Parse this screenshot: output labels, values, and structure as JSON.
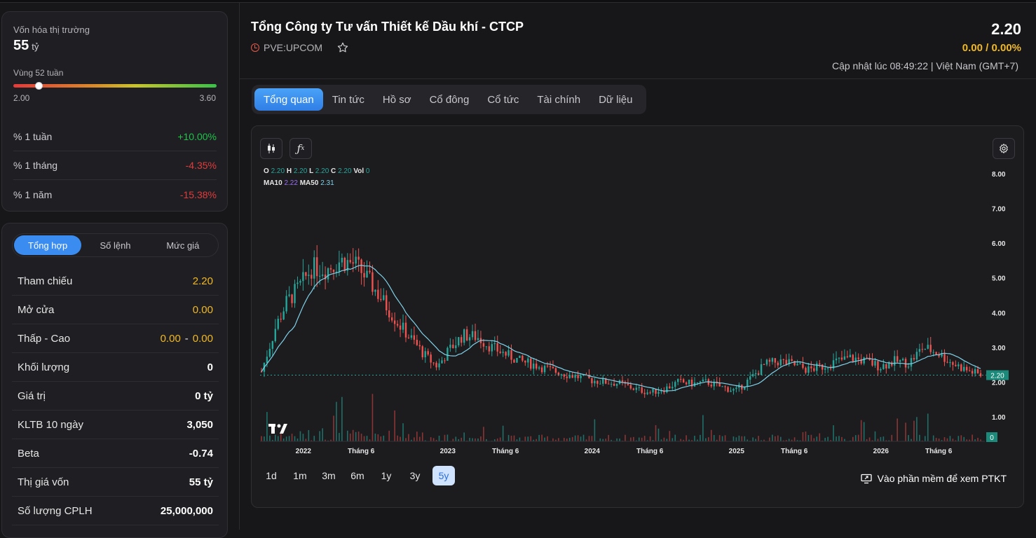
{
  "market_cap": {
    "label": "Vốn hóa thị trường",
    "value": "55",
    "unit": "tỷ"
  },
  "week52": {
    "label": "Vùng 52 tuần",
    "min": "2.00",
    "max": "3.60",
    "position": 0.125
  },
  "performance": [
    {
      "label": "% 1 tuần",
      "value": "+10.00%",
      "dir": "pos"
    },
    {
      "label": "% 1 tháng",
      "value": "-4.35%",
      "dir": "neg"
    },
    {
      "label": "% 1 năm",
      "value": "-15.38%",
      "dir": "neg"
    }
  ],
  "summary_tabs": [
    "Tổng hợp",
    "Số lệnh",
    "Mức giá"
  ],
  "stats": {
    "ref_label": "Tham chiếu",
    "ref_value": "2.20",
    "open_label": "Mở cửa",
    "open_value": "0.00",
    "lh_label": "Thấp - Cao",
    "low_value": "0.00",
    "lh_sep": "-",
    "high_value": "0.00",
    "vol_label": "Khối lượng",
    "vol_value": "0",
    "val_label": "Giá trị",
    "val_value": "0 tỷ",
    "kltb_label": "KLTB 10 ngày",
    "kltb_value": "3,050",
    "beta_label": "Beta",
    "beta_value": "-0.74",
    "cap_label": "Thị giá vốn",
    "cap_value": "55 tỷ",
    "cplh_label": "Số lượng CPLH",
    "cplh_value": "25,000,000"
  },
  "header": {
    "company": "Tổng Công ty Tư vấn Thiết kế Dầu khí - CTCP",
    "ticker": "PVE:UPCOM",
    "price": "2.20",
    "change": "0.00 / 0.00%",
    "updated": "Cập nhật lúc 08:49:22 | Việt Nam (GMT+7)"
  },
  "tabs": [
    "Tổng quan",
    "Tin tức",
    "Hồ sơ",
    "Cổ đông",
    "Cổ tức",
    "Tài chính",
    "Dữ liệu"
  ],
  "legend": {
    "o_label": "O",
    "o": "2.20",
    "h_label": "H",
    "h": "2.20",
    "l_label": "L",
    "l": "2.20",
    "c_label": "C",
    "c": "2.20",
    "vol_label": "Vol",
    "vol": "0",
    "ma10_label": "MA10",
    "ma10": "2.22",
    "ma50_label": "MA50",
    "ma50": "2.31"
  },
  "ranges": [
    "1d",
    "1m",
    "3m",
    "6m",
    "1y",
    "3y",
    "5y"
  ],
  "active_range": "5y",
  "ptkt_label": "Vào phần mềm để xem PTKT",
  "colors": {
    "up": "#26a69a",
    "down": "#ef5350",
    "ma": "#7fd1e8",
    "accent": "#3b8cf0",
    "yellow": "#f0b824"
  },
  "icons": [
    "clock-icon",
    "star-icon",
    "candlestick-icon",
    "function-icon",
    "gear-icon",
    "tradingview-logo",
    "monitor-icon"
  ],
  "chart_data": {
    "type": "candlestick",
    "x_ticks": [
      "2022",
      "Tháng 6",
      "2023",
      "Tháng 6",
      "2024",
      "Tháng 6",
      "2025",
      "Tháng 6",
      "2026",
      "Tháng 6"
    ],
    "y_ticks": [
      "8.00",
      "7.00",
      "6.00",
      "5.00",
      "4.00",
      "3.00",
      "2.00",
      "1.00"
    ],
    "ylim": [
      0,
      8
    ],
    "last_price_label": "2.20",
    "last_volume_label": "0",
    "price_path": [
      [
        0,
        2.3
      ],
      [
        0.02,
        3.6
      ],
      [
        0.035,
        4.3
      ],
      [
        0.055,
        4.8
      ],
      [
        0.07,
        5.3
      ],
      [
        0.09,
        5.25
      ],
      [
        0.11,
        5.5
      ],
      [
        0.13,
        5.4
      ],
      [
        0.15,
        4.9
      ],
      [
        0.17,
        4.3
      ],
      [
        0.19,
        3.7
      ],
      [
        0.21,
        3.2
      ],
      [
        0.23,
        2.7
      ],
      [
        0.245,
        2.45
      ],
      [
        0.26,
        2.9
      ],
      [
        0.28,
        3.35
      ],
      [
        0.3,
        3.3
      ],
      [
        0.32,
        3.0
      ],
      [
        0.34,
        2.8
      ],
      [
        0.36,
        2.6
      ],
      [
        0.38,
        2.5
      ],
      [
        0.4,
        2.35
      ],
      [
        0.42,
        2.25
      ],
      [
        0.44,
        2.15
      ],
      [
        0.46,
        2.05
      ],
      [
        0.48,
        2.0
      ],
      [
        0.5,
        1.95
      ],
      [
        0.52,
        1.8
      ],
      [
        0.54,
        1.7
      ],
      [
        0.56,
        1.8
      ],
      [
        0.58,
        2.0
      ],
      [
        0.6,
        1.95
      ],
      [
        0.62,
        2.0
      ],
      [
        0.64,
        1.85
      ],
      [
        0.66,
        1.75
      ],
      [
        0.68,
        2.1
      ],
      [
        0.7,
        2.5
      ],
      [
        0.72,
        2.6
      ],
      [
        0.74,
        2.5
      ],
      [
        0.76,
        2.35
      ],
      [
        0.78,
        2.45
      ],
      [
        0.8,
        2.6
      ],
      [
        0.82,
        2.7
      ],
      [
        0.84,
        2.6
      ],
      [
        0.86,
        2.45
      ],
      [
        0.88,
        2.6
      ],
      [
        0.9,
        2.55
      ],
      [
        0.92,
        3.0
      ],
      [
        0.94,
        2.85
      ],
      [
        0.96,
        2.55
      ],
      [
        0.98,
        2.35
      ],
      [
        1.0,
        2.2
      ]
    ]
  }
}
